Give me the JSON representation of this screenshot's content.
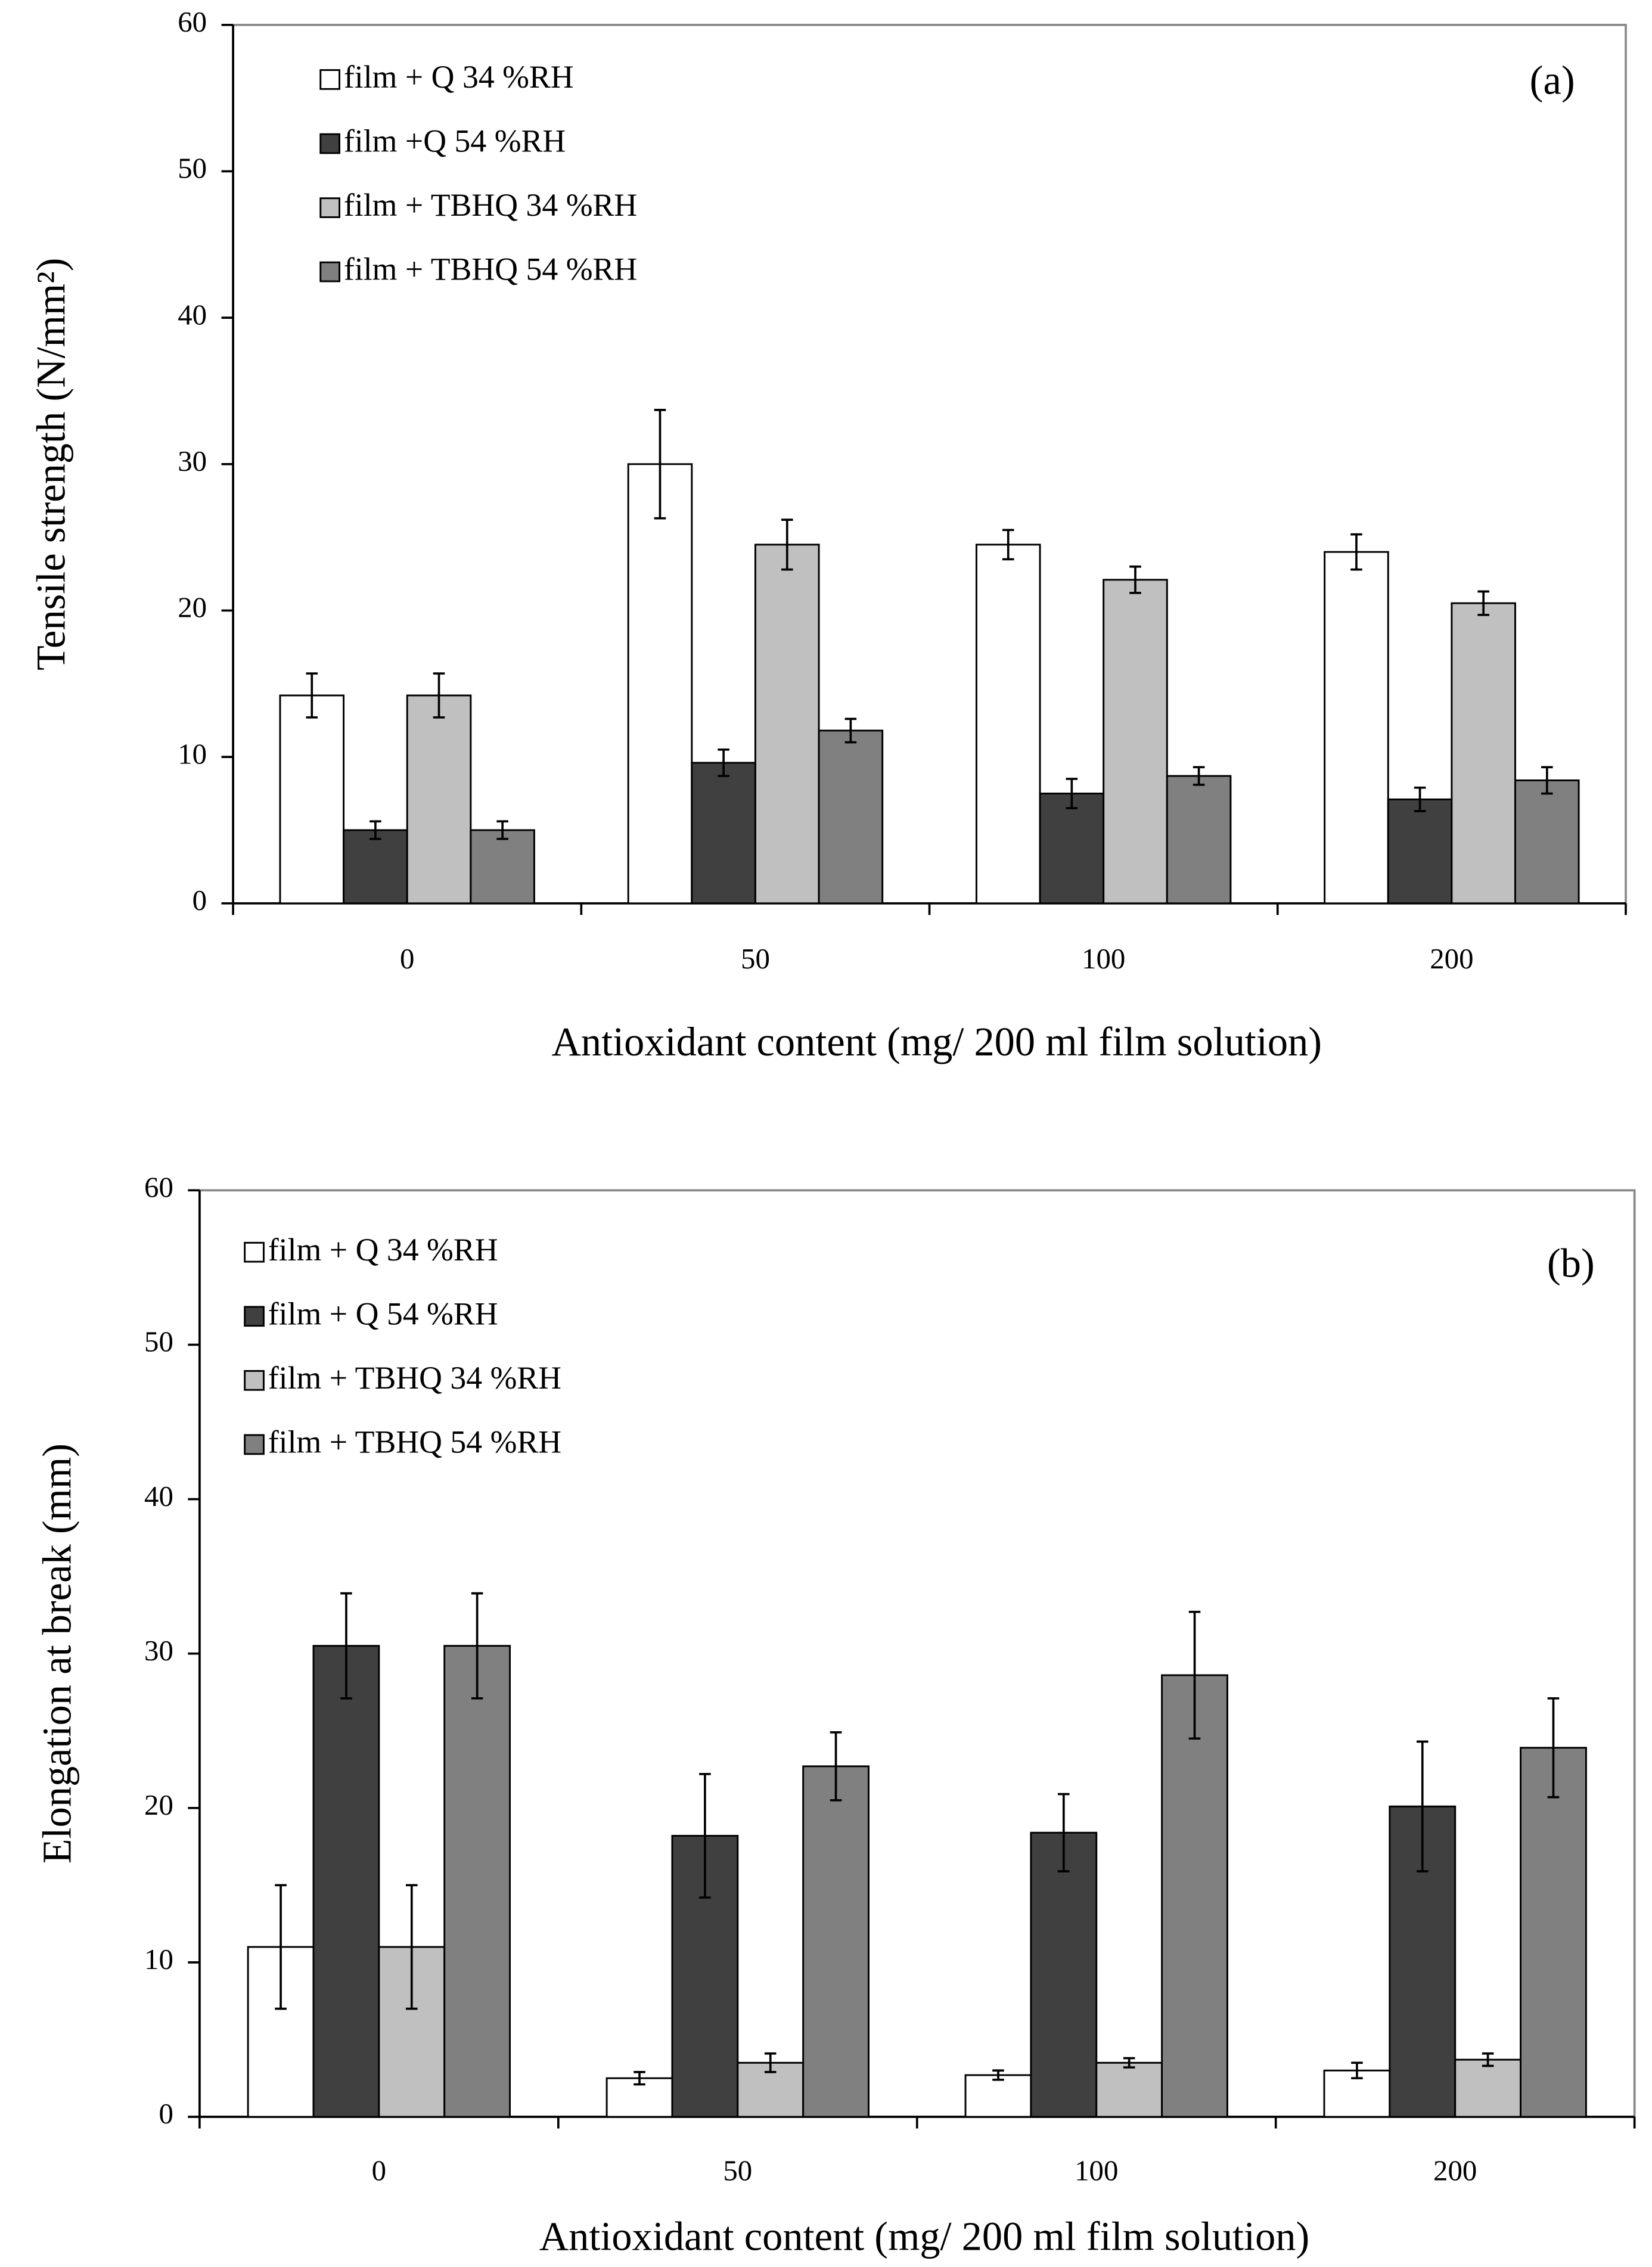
{
  "chart_data": [
    {
      "type": "bar",
      "annotation": "(a)",
      "y_label": "Tensile strength (N/mm²)",
      "x_label": "Antioxidant content (mg/ 200 ml film solution)",
      "categories": [
        "0",
        "50",
        "100",
        "200"
      ],
      "series": [
        {
          "name": "film + Q 34 %RH",
          "color": "#ffffff",
          "values": [
            14.2,
            30,
            24.5,
            24
          ],
          "errors": [
            1.5,
            3.7,
            1.0,
            1.2
          ]
        },
        {
          "name": "film +Q 54 %RH",
          "color": "#404040",
          "values": [
            5,
            9.6,
            7.5,
            7.1
          ],
          "errors": [
            0.6,
            0.9,
            1.0,
            0.8
          ]
        },
        {
          "name": "film + TBHQ 34 %RH",
          "color": "#c0c0c0",
          "values": [
            14.2,
            24.5,
            22.1,
            20.5
          ],
          "errors": [
            1.5,
            1.7,
            0.9,
            0.8
          ]
        },
        {
          "name": "film + TBHQ 54 %RH",
          "color": "#808080",
          "values": [
            5,
            11.8,
            8.7,
            8.4
          ],
          "errors": [
            0.6,
            0.8,
            0.6,
            0.9
          ]
        }
      ],
      "ylim": [
        0,
        60
      ],
      "yticks": [
        0,
        10,
        20,
        30,
        40,
        50,
        60
      ],
      "grid": false,
      "legend": "top-left"
    },
    {
      "type": "bar",
      "annotation": "(b)",
      "y_label": "Elongation at break (mm)",
      "x_label": "Antioxidant content (mg/ 200 ml film solution)",
      "categories": [
        "0",
        "50",
        "100",
        "200"
      ],
      "series": [
        {
          "name": "film + Q 34 %RH",
          "color": "#ffffff",
          "values": [
            11,
            2.5,
            2.7,
            3
          ],
          "errors": [
            4,
            0.4,
            0.3,
            0.5
          ]
        },
        {
          "name": "film + Q 54 %RH",
          "color": "#404040",
          "values": [
            30.5,
            18.2,
            18.4,
            20.1
          ],
          "errors": [
            3.4,
            4,
            2.5,
            4.2
          ]
        },
        {
          "name": "film + TBHQ 34 %RH",
          "color": "#c0c0c0",
          "values": [
            11,
            3.5,
            3.5,
            3.7
          ],
          "errors": [
            4,
            0.6,
            0.3,
            0.4
          ]
        },
        {
          "name": "film + TBHQ 54 %RH",
          "color": "#808080",
          "values": [
            30.5,
            22.7,
            28.6,
            23.9
          ],
          "errors": [
            3.4,
            2.2,
            4.1,
            3.2
          ]
        }
      ],
      "ylim": [
        0,
        60
      ],
      "yticks": [
        0,
        10,
        20,
        30,
        40,
        50,
        60
      ],
      "grid": false,
      "legend": "top-left"
    }
  ]
}
